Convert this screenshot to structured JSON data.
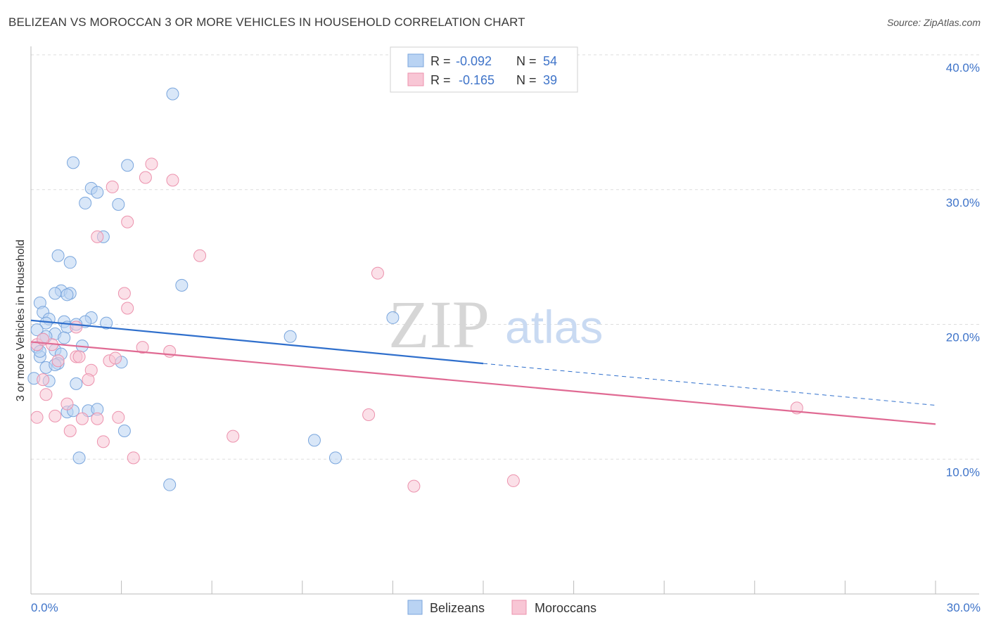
{
  "chart_data": {
    "type": "scatter",
    "title": "BELIZEAN VS MOROCCAN 3 OR MORE VEHICLES IN HOUSEHOLD CORRELATION CHART",
    "source": "Source: ZipAtlas.com",
    "xlabel": "",
    "ylabel": "3 or more Vehicles in Household",
    "xlim": [
      0,
      30
    ],
    "ylim": [
      0,
      40
    ],
    "x_tick_labels": [
      {
        "value": 0,
        "label": "0.0%"
      },
      {
        "value": 30,
        "label": "30.0%"
      }
    ],
    "y_tick_labels": [
      {
        "value": 10,
        "label": "10.0%"
      },
      {
        "value": 20,
        "label": "20.0%"
      },
      {
        "value": 30,
        "label": "30.0%"
      },
      {
        "value": 40,
        "label": "40.0%"
      }
    ],
    "watermark": {
      "part1": "ZIP",
      "part2": "atlas"
    },
    "legend": {
      "r_label": "R =",
      "n_label": "N =",
      "entries": [
        {
          "name": "Belizeans",
          "r": "-0.092",
          "n": "54"
        },
        {
          "name": "Moroccans",
          "r": "-0.165",
          "n": "39"
        }
      ]
    },
    "series": [
      {
        "name": "Belizeans",
        "fill": "#b9d3f3",
        "stroke": "#7aa6dd",
        "line_color": "#2f6fcc",
        "trend": {
          "x0": 0,
          "y0": 20.3,
          "x1": 15,
          "y1": 17.1,
          "dash_x1": 30,
          "dash_y1": 14.0
        },
        "points": [
          [
            4.7,
            37.1
          ],
          [
            1.4,
            32.0
          ],
          [
            3.2,
            31.8
          ],
          [
            2.0,
            30.1
          ],
          [
            2.2,
            29.8
          ],
          [
            1.8,
            29.0
          ],
          [
            2.9,
            28.9
          ],
          [
            2.4,
            26.5
          ],
          [
            0.9,
            25.1
          ],
          [
            1.3,
            24.6
          ],
          [
            5.0,
            22.9
          ],
          [
            1.0,
            22.5
          ],
          [
            0.8,
            22.3
          ],
          [
            1.3,
            22.3
          ],
          [
            1.2,
            22.2
          ],
          [
            0.3,
            21.6
          ],
          [
            0.4,
            20.9
          ],
          [
            0.6,
            20.4
          ],
          [
            2.0,
            20.5
          ],
          [
            0.5,
            20.1
          ],
          [
            1.8,
            20.2
          ],
          [
            2.5,
            20.1
          ],
          [
            1.1,
            20.2
          ],
          [
            1.2,
            19.8
          ],
          [
            0.2,
            19.6
          ],
          [
            8.6,
            19.1
          ],
          [
            12.0,
            20.5
          ],
          [
            0.8,
            19.3
          ],
          [
            0.5,
            19.1
          ],
          [
            0.4,
            18.9
          ],
          [
            0.2,
            18.3
          ],
          [
            1.7,
            18.4
          ],
          [
            0.8,
            18.1
          ],
          [
            1.0,
            17.8
          ],
          [
            1.1,
            19.0
          ],
          [
            0.3,
            17.6
          ],
          [
            0.9,
            17.1
          ],
          [
            3.0,
            17.2
          ],
          [
            0.5,
            16.8
          ],
          [
            0.6,
            15.8
          ],
          [
            1.5,
            15.6
          ],
          [
            0.1,
            16.0
          ],
          [
            1.2,
            13.5
          ],
          [
            1.9,
            13.6
          ],
          [
            2.2,
            13.7
          ],
          [
            1.4,
            13.6
          ],
          [
            3.1,
            12.1
          ],
          [
            9.4,
            11.4
          ],
          [
            1.6,
            10.1
          ],
          [
            10.1,
            10.1
          ],
          [
            4.6,
            8.1
          ],
          [
            0.8,
            17.0
          ],
          [
            1.5,
            20.0
          ],
          [
            0.3,
            18.0
          ]
        ]
      },
      {
        "name": "Moroccans",
        "fill": "#f8c6d5",
        "stroke": "#ec92ad",
        "line_color": "#e06a93",
        "trend": {
          "x0": 0,
          "y0": 18.7,
          "x1": 30,
          "y1": 12.6
        },
        "points": [
          [
            4.0,
            31.9
          ],
          [
            3.8,
            30.9
          ],
          [
            4.7,
            30.7
          ],
          [
            2.7,
            30.2
          ],
          [
            3.2,
            27.6
          ],
          [
            2.2,
            26.5
          ],
          [
            5.6,
            25.1
          ],
          [
            11.5,
            23.8
          ],
          [
            3.1,
            22.3
          ],
          [
            3.2,
            21.2
          ],
          [
            1.5,
            19.8
          ],
          [
            0.2,
            18.5
          ],
          [
            0.7,
            18.5
          ],
          [
            3.7,
            18.3
          ],
          [
            4.6,
            18.0
          ],
          [
            1.5,
            17.6
          ],
          [
            2.6,
            17.3
          ],
          [
            2.8,
            17.5
          ],
          [
            1.6,
            17.6
          ],
          [
            0.9,
            17.3
          ],
          [
            2.0,
            16.6
          ],
          [
            0.4,
            15.9
          ],
          [
            1.9,
            15.9
          ],
          [
            0.5,
            14.8
          ],
          [
            1.2,
            14.1
          ],
          [
            0.2,
            13.1
          ],
          [
            0.8,
            13.2
          ],
          [
            1.7,
            13.0
          ],
          [
            2.2,
            13.0
          ],
          [
            2.9,
            13.1
          ],
          [
            11.2,
            13.3
          ],
          [
            25.4,
            13.8
          ],
          [
            1.3,
            12.1
          ],
          [
            6.7,
            11.7
          ],
          [
            2.4,
            11.3
          ],
          [
            3.4,
            10.1
          ],
          [
            16.0,
            8.4
          ],
          [
            12.7,
            8.0
          ],
          [
            0.4,
            18.9
          ]
        ]
      }
    ]
  }
}
